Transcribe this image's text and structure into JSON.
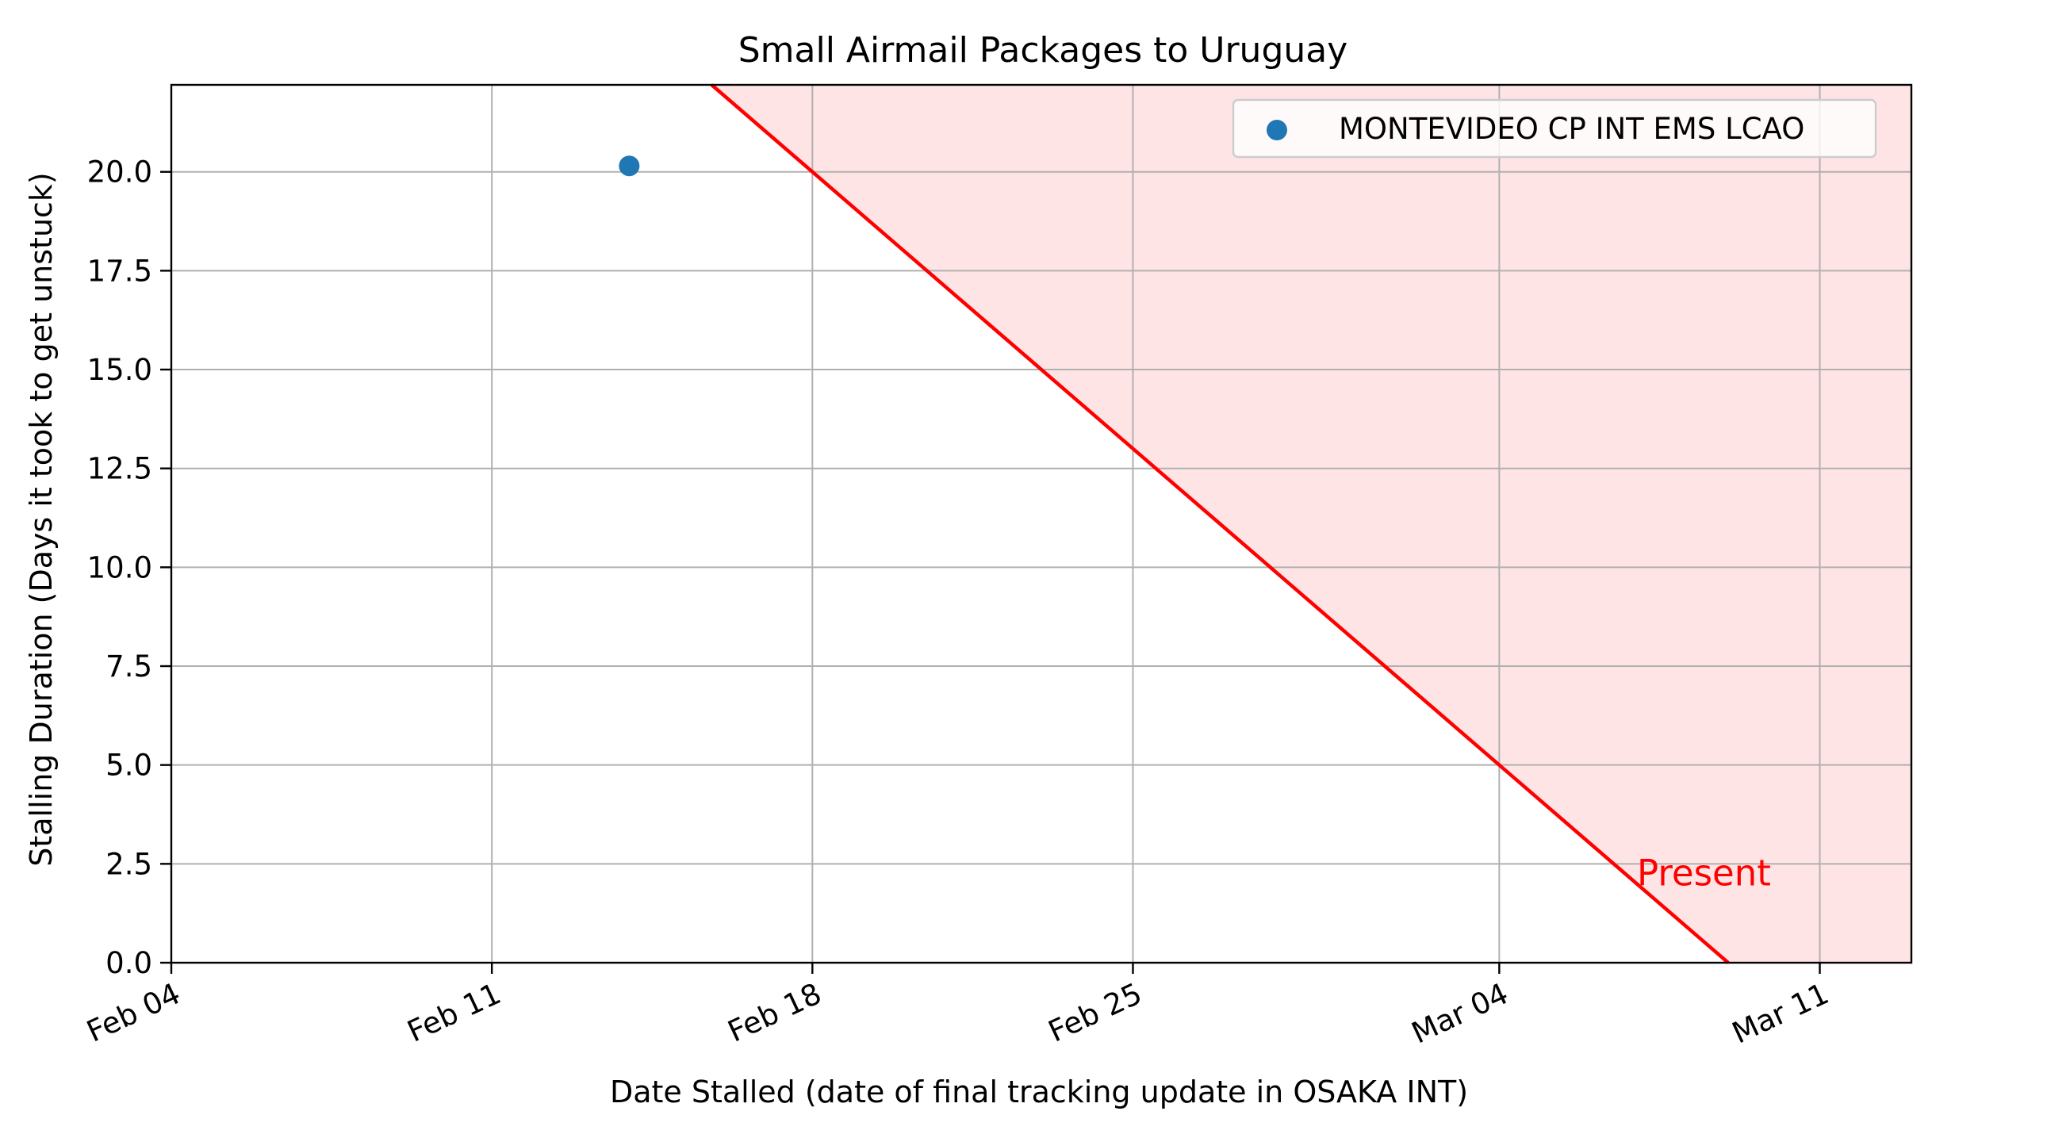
{
  "chart_data": {
    "type": "scatter",
    "title": "Small Airmail Packages to Uruguay",
    "xlabel": "Date Stalled (date of final tracking update in OSAKA INT)",
    "ylabel": "Stalling Duration (Days it took to get unstuck)",
    "x_type": "date",
    "year": 2024,
    "xlim": [
      "2024-02-04",
      "2024-03-13"
    ],
    "ylim": [
      0,
      22.2
    ],
    "xticks": [
      {
        "value": "2024-02-04",
        "label": "Feb 04"
      },
      {
        "value": "2024-02-11",
        "label": "Feb 11"
      },
      {
        "value": "2024-02-18",
        "label": "Feb 18"
      },
      {
        "value": "2024-02-25",
        "label": "Feb 25"
      },
      {
        "value": "2024-03-04",
        "label": "Mar 04"
      },
      {
        "value": "2024-03-11",
        "label": "Mar 11"
      }
    ],
    "yticks": [
      0,
      2.5,
      5,
      7.5,
      10,
      12.5,
      15,
      17.5,
      20
    ],
    "ytick_labels": [
      "0.0",
      "2.5",
      "5.0",
      "7.5",
      "10.0",
      "12.5",
      "15.0",
      "17.5",
      "20.0"
    ],
    "grid": true,
    "legend_position": "top-right",
    "series": [
      {
        "name": "MONTEVIDEO CP INT EMS LCAO",
        "color": "#1f77b4",
        "points": [
          {
            "x": "2024-02-14",
            "y": 20.15
          }
        ]
      }
    ],
    "present_line": {
      "label": "Present",
      "color": "#ff0000",
      "fill_color": "#ffe4e6",
      "present_date": "2024-03-09"
    }
  }
}
